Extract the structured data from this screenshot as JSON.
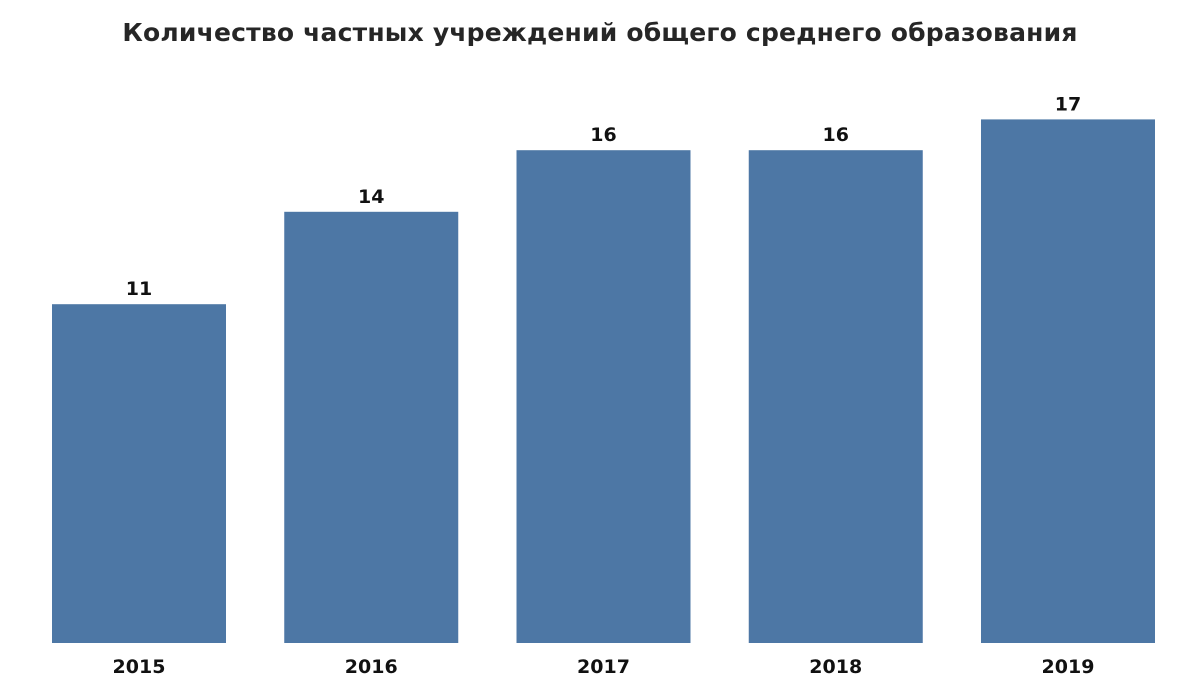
{
  "chart_data": {
    "type": "bar",
    "title": "Количество частных учреждений общего среднего образования",
    "xlabel": "",
    "ylabel": "",
    "categories": [
      "2015",
      "2016",
      "2017",
      "2018",
      "2019"
    ],
    "values": [
      11,
      14,
      16,
      16,
      17
    ],
    "ylim": [
      0,
      17.5
    ],
    "grid": false,
    "legend": "none",
    "data_labels": true,
    "bar_color": "#4d77a5"
  }
}
